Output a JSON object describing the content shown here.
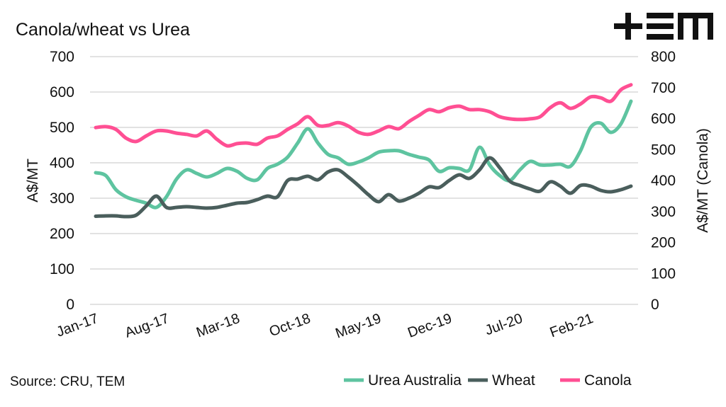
{
  "chart_data": {
    "type": "line",
    "title": "Canola/wheat vs Urea",
    "source": "Source: CRU, TEM",
    "logo_text": "TEM",
    "ylabel_left": "A$/MT",
    "ylabel_right": "A$/MT (Canola)",
    "ylim_left": [
      0,
      700
    ],
    "ylim_right": [
      0,
      800
    ],
    "yticks_left": [
      0,
      100,
      200,
      300,
      400,
      500,
      600,
      700
    ],
    "yticks_right": [
      0,
      100,
      200,
      300,
      400,
      500,
      600,
      700,
      800
    ],
    "xtick_labels": [
      "Jan-17",
      "Aug-17",
      "Mar-18",
      "Oct-18",
      "May-19",
      "Dec-19",
      "Jul-20",
      "Feb-21"
    ],
    "grid": "horizontal",
    "legend_placement": "bottom-right",
    "x": [
      "Jan-17",
      "Feb-17",
      "Mar-17",
      "Apr-17",
      "May-17",
      "Jun-17",
      "Jul-17",
      "Aug-17",
      "Sep-17",
      "Oct-17",
      "Nov-17",
      "Dec-17",
      "Jan-18",
      "Feb-18",
      "Mar-18",
      "Apr-18",
      "May-18",
      "Jun-18",
      "Jul-18",
      "Aug-18",
      "Sep-18",
      "Oct-18",
      "Nov-18",
      "Dec-18",
      "Jan-19",
      "Feb-19",
      "Mar-19",
      "Apr-19",
      "May-19",
      "Jun-19",
      "Jul-19",
      "Aug-19",
      "Sep-19",
      "Oct-19",
      "Nov-19",
      "Dec-19",
      "Jan-20",
      "Feb-20",
      "Mar-20",
      "Apr-20",
      "May-20",
      "Jun-20",
      "Jul-20",
      "Aug-20",
      "Sep-20",
      "Oct-20",
      "Nov-20",
      "Dec-20",
      "Jan-21",
      "Feb-21",
      "Mar-21",
      "Apr-21",
      "May-21",
      "Jun-21"
    ],
    "series": [
      {
        "name": "Urea Australia",
        "axis": "left",
        "color": "#5ec4a0",
        "values": [
          372,
          364,
          324,
          304,
          294,
          286,
          274,
          304,
          354,
          380,
          370,
          360,
          370,
          384,
          376,
          356,
          352,
          384,
          396,
          416,
          456,
          496,
          456,
          424,
          414,
          396,
          402,
          414,
          430,
          434,
          434,
          424,
          416,
          408,
          376,
          386,
          384,
          380,
          444,
          394,
          364,
          350,
          380,
          404,
          394,
          394,
          396,
          390,
          434,
          500,
          512,
          486,
          510,
          574
        ]
      },
      {
        "name": "Wheat",
        "axis": "left",
        "color": "#4a5e5c",
        "values": [
          249,
          250,
          250,
          248,
          252,
          278,
          306,
          274,
          274,
          276,
          274,
          272,
          274,
          280,
          286,
          288,
          296,
          306,
          304,
          350,
          354,
          362,
          352,
          374,
          380,
          360,
          336,
          310,
          290,
          310,
          292,
          300,
          314,
          332,
          330,
          350,
          366,
          356,
          380,
          414,
          386,
          348,
          336,
          326,
          320,
          346,
          334,
          314,
          336,
          334,
          322,
          318,
          324,
          334
        ]
      },
      {
        "name": "Canola",
        "axis": "right",
        "color": "#ff4f93",
        "values": [
          571,
          574,
          565,
          537,
          526,
          544,
          560,
          560,
          553,
          549,
          544,
          560,
          533,
          512,
          519,
          521,
          517,
          537,
          544,
          565,
          583,
          606,
          578,
          578,
          587,
          576,
          556,
          549,
          560,
          574,
          567,
          590,
          610,
          629,
          622,
          635,
          640,
          629,
          629,
          622,
          606,
          599,
          597,
          599,
          606,
          635,
          651,
          633,
          647,
          670,
          667,
          656,
          693,
          709
        ]
      }
    ]
  }
}
